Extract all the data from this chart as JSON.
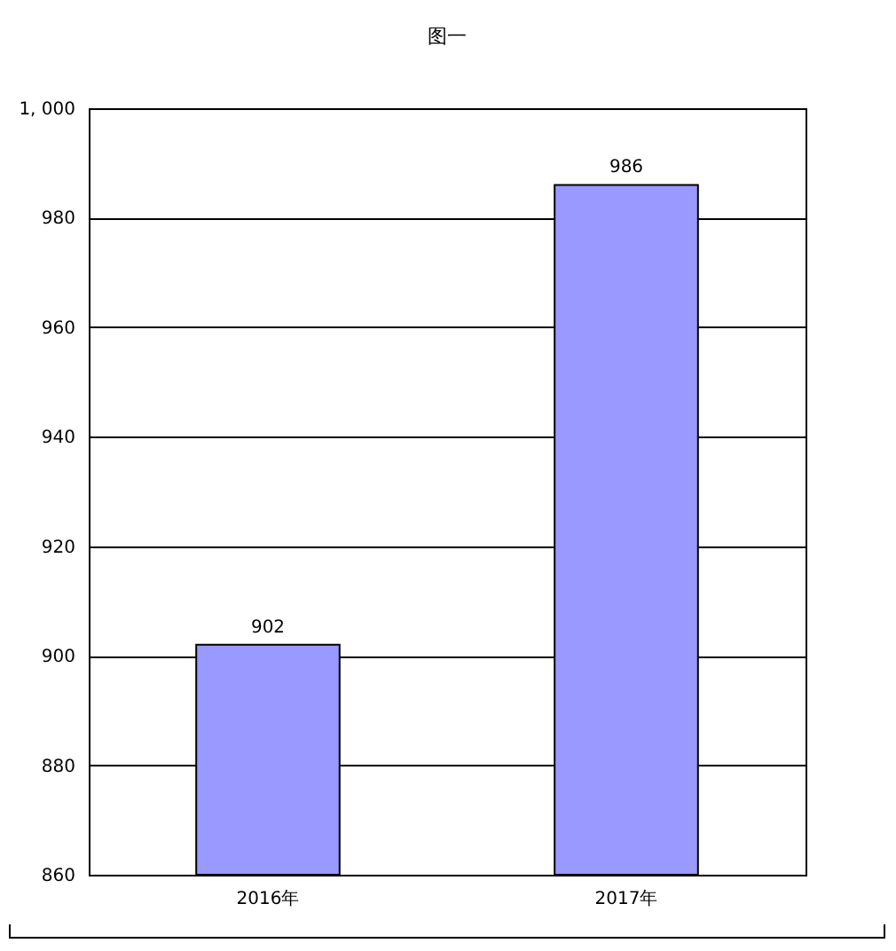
{
  "chart_data": {
    "type": "bar",
    "title": "图一",
    "categories": [
      "2016年",
      "2017年"
    ],
    "values": [
      902,
      986
    ],
    "color": "#9999ff",
    "ylim": [
      860,
      1000
    ],
    "yticks": [
      860,
      880,
      900,
      920,
      940,
      960,
      980,
      {
        "value": 1000,
        "label": "1, 000"
      }
    ],
    "grid": "y",
    "data_labels": true
  }
}
